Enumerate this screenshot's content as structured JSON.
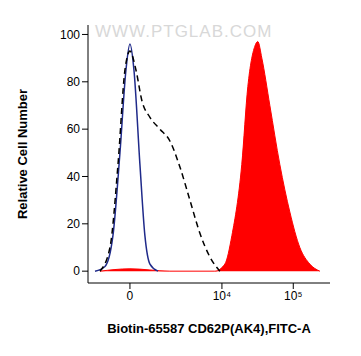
{
  "chart_data": {
    "type": "line",
    "title": null,
    "annotations": [
      "WWW.PTGLAB.COM"
    ],
    "x_label": "Biotin-65587 CD62P(AK4),FITC-A",
    "y_label": "Relative Cell Number",
    "log": "x",
    "xlim": [
      -1600,
      320000
    ],
    "xticks": [
      0,
      {
        "value": 10000,
        "label": "10⁴"
      },
      {
        "value": 100000,
        "label": "10⁵"
      }
    ],
    "ylim": [
      -5,
      104
    ],
    "yticks": [
      0,
      20,
      40,
      60,
      80,
      100
    ],
    "series": [
      {
        "type": "line",
        "color": "#1f2a8a",
        "line_style": "solid",
        "x": [
          -1167,
          -695,
          -412,
          -215,
          -78,
          0,
          78,
          215,
          350,
          510,
          824
        ],
        "values": [
          0,
          2,
          15,
          50,
          85,
          96,
          85,
          45,
          15,
          3,
          0
        ]
      },
      {
        "type": "line",
        "color": "#000000",
        "line_style": "dashed",
        "x": [
          -914,
          -510,
          -266,
          -99,
          0,
          121,
          266,
          510,
          914,
          1467,
          2228,
          3270,
          4700,
          6654,
          9335
        ],
        "values": [
          0,
          10,
          45,
          85,
          93,
          85,
          72,
          65,
          60,
          55,
          44,
          30,
          16,
          6,
          0
        ]
      },
      {
        "type": "area",
        "color": "#ff0000",
        "line_style": "solid",
        "x": [
          -914,
          0,
          1467,
          7882,
          11020,
          13900,
          19200,
          23380,
          29290,
          32260,
          36700,
          47440,
          65250,
          89660,
          123130,
          169000,
          232500
        ],
        "values": [
          0,
          1,
          0,
          0,
          3,
          15,
          45,
          78,
          95,
          97,
          90,
          70,
          45,
          25,
          10,
          3,
          0
        ]
      }
    ]
  }
}
